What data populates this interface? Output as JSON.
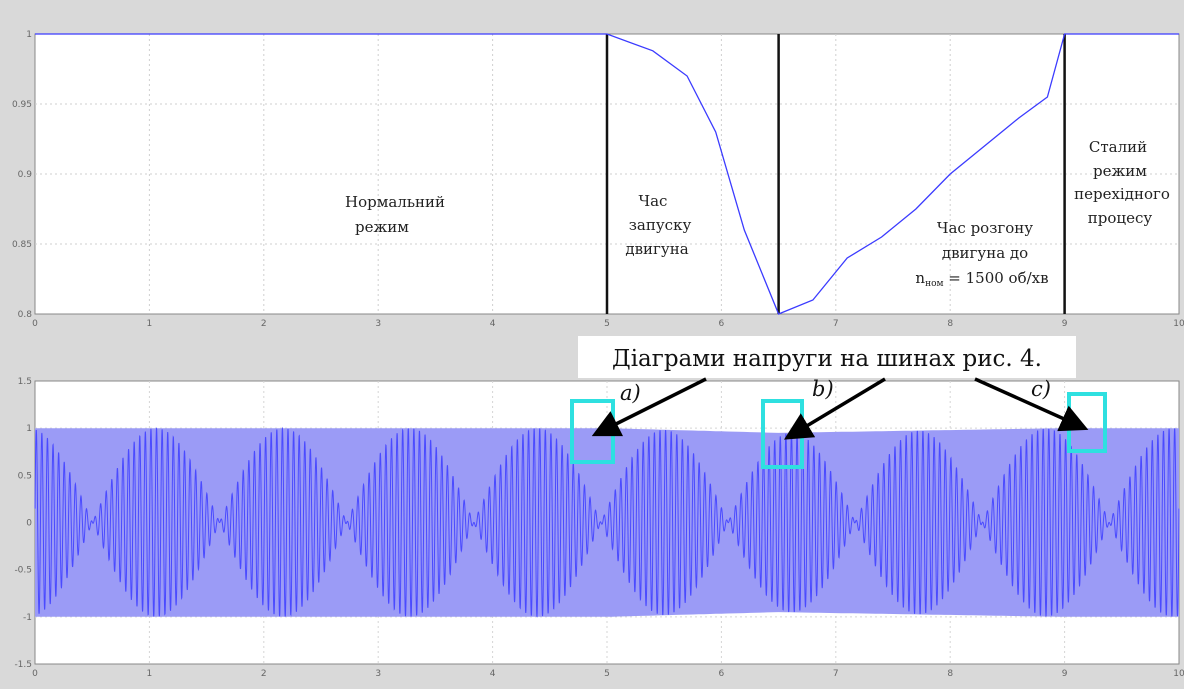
{
  "chart_data": [
    {
      "type": "line",
      "x": [
        0,
        5,
        5.4,
        5.7,
        5.95,
        6.2,
        6.5,
        6.8,
        7.1,
        7.4,
        7.7,
        8.0,
        8.3,
        8.6,
        8.85,
        9,
        10
      ],
      "y": [
        1.0,
        1.0,
        0.988,
        0.97,
        0.93,
        0.86,
        0.8,
        0.81,
        0.84,
        0.855,
        0.875,
        0.9,
        0.92,
        0.94,
        0.955,
        1.0,
        1.0
      ],
      "xlim": [
        0,
        10
      ],
      "ylim": [
        0.8,
        1.0
      ],
      "xticks": [
        "0",
        "1",
        "2",
        "3",
        "4",
        "5",
        "6",
        "7",
        "8",
        "9",
        "10"
      ],
      "yticks": [
        "1",
        "0.95",
        "0.9",
        "0.85",
        "0.8",
        "0.75"
      ],
      "series_color": "#3b3bff",
      "grid": true,
      "vlines_x": [
        5,
        6.5,
        9
      ],
      "annotations": [
        {
          "text": "Нормальний режим",
          "lines": [
            "Нормальний",
            "режим"
          ]
        },
        {
          "text": "Час запуску двигуна",
          "lines": [
            "Час",
            "запуску",
            "двигуна"
          ]
        },
        {
          "text": "Час розгону двигуна до nном = 1500 об/хв",
          "lines": [
            "Час розгону",
            "двигуна до"
          ],
          "formula": {
            "prefix": "n",
            "subscript": "ном",
            "suffix": " = 1500 об/хв"
          }
        },
        {
          "text": "Сталий режим перехідного процесу",
          "lines": [
            "Сталий",
            "режим",
            "перехідного",
            "процесу"
          ]
        }
      ]
    },
    {
      "type": "area",
      "x": [
        0,
        5,
        6.5,
        9,
        10
      ],
      "y_amplitude": [
        1.0,
        1.0,
        0.95,
        1.0,
        1.0
      ],
      "xlim": [
        0,
        10
      ],
      "ylim": [
        -1.5,
        1.5
      ],
      "xticks": [
        "0",
        "1",
        "2",
        "3",
        "4",
        "5",
        "6",
        "7",
        "8",
        "9",
        "10"
      ],
      "yticks": [
        "1.5",
        "1",
        "0.5",
        "0",
        "-0.5",
        "-1",
        "-1.5"
      ],
      "series_color": "#4a4aff",
      "fill_color": "#9b9bf6",
      "grid": true
    }
  ],
  "caption": "Діаграми напруги на шинах рис. 4.",
  "markers": [
    {
      "label": "a)",
      "x": 5.1
    },
    {
      "label": "b)",
      "x": 6.8
    },
    {
      "label": "c)",
      "x": 9.3
    }
  ],
  "highlight_color": "#2ee0e0"
}
